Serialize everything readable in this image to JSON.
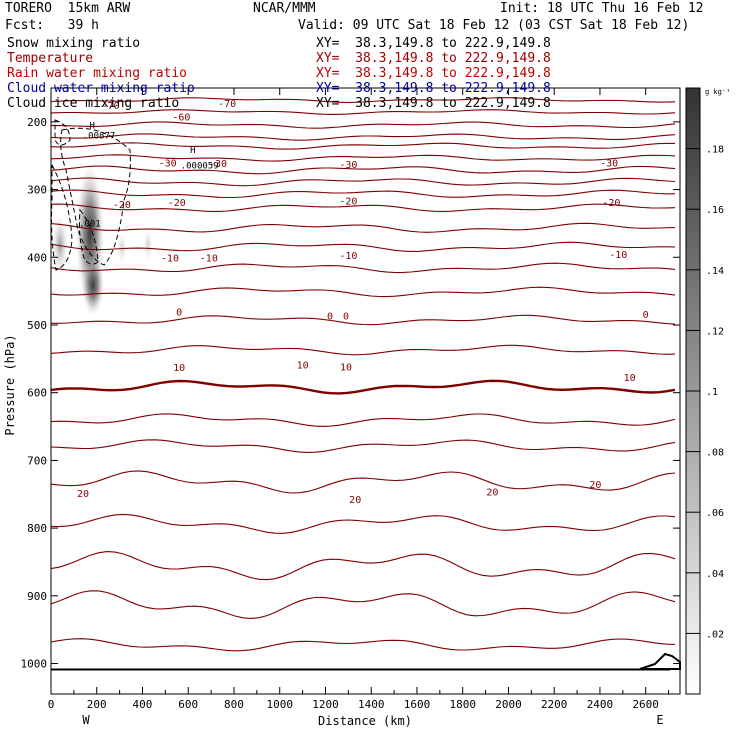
{
  "header": {
    "model": "TORERO  15km ARW",
    "center": "NCAR/MMM",
    "init": "Init: 18 UTC Thu 16 Feb 12",
    "fcst": "Fcst:   39 h",
    "valid": "Valid: 09 UTC Sat 18 Feb 12 (03 CST Sat 18 Feb 12)"
  },
  "fields": [
    {
      "name": "Snow mixing ratio",
      "xy": "XY=  38.3,149.8 to 222.9,149.8",
      "color": "#000000"
    },
    {
      "name": "Temperature",
      "xy": "XY=  38.3,149.8 to 222.9,149.8",
      "color": "#a00000"
    },
    {
      "name": "Rain water mixing ratio",
      "xy": "XY=  38.3,149.8 to 222.9,149.8",
      "color": "#c00000"
    },
    {
      "name": "Cloud water mixing ratio",
      "xy": "XY=  38.3,149.8 to 222.9,149.8",
      "color": "#0000a0"
    },
    {
      "name": "Cloud ice mixing ratio",
      "xy": "XY=  38.3,149.8 to 222.9,149.8",
      "color": "#000000"
    }
  ],
  "chart_data": {
    "type": "contour",
    "xlabel": "Distance (km)",
    "ylabel": "Pressure (hPa)",
    "xlim": [
      0,
      2750
    ],
    "ylim": [
      1045,
      150
    ],
    "xticks": [
      "0",
      "200",
      "400",
      "600",
      "800",
      "1000",
      "1200",
      "1400",
      "1600",
      "1800",
      "2000",
      "2200",
      "2400",
      "2600"
    ],
    "yticks": [
      "200",
      "300",
      "400",
      "500",
      "600",
      "700",
      "800",
      "900",
      "1000"
    ],
    "x_end_labels": {
      "left": "W",
      "right": "E"
    },
    "colorbar": {
      "unit": "g kg⁻¹",
      "ticks": [
        ".02",
        ".04",
        ".06",
        ".08",
        ".1",
        ".12",
        ".14",
        ".16",
        ".18"
      ],
      "range": [
        0,
        0.2
      ]
    },
    "contour_color": "#800000",
    "temperature_labels": [
      {
        "t": "-70",
        "x": 770,
        "p": 172
      },
      {
        "t": "-70",
        "x": 260,
        "p": 175
      },
      {
        "t": "-60",
        "x": 570,
        "p": 192
      },
      {
        "t": "-30",
        "x": 510,
        "p": 260
      },
      {
        "t": "-30",
        "x": 730,
        "p": 261
      },
      {
        "t": "-30",
        "x": 1300,
        "p": 262
      },
      {
        "t": "-30",
        "x": 2440,
        "p": 260
      },
      {
        "t": "-20",
        "x": 310,
        "p": 321
      },
      {
        "t": "-20",
        "x": 550,
        "p": 318
      },
      {
        "t": "-20",
        "x": 1300,
        "p": 316
      },
      {
        "t": "-20",
        "x": 2450,
        "p": 318
      },
      {
        "t": "-10",
        "x": 520,
        "p": 400
      },
      {
        "t": "-10",
        "x": 690,
        "p": 400
      },
      {
        "t": "-10",
        "x": 1300,
        "p": 397
      },
      {
        "t": "-10",
        "x": 2480,
        "p": 395
      },
      {
        "t": "0",
        "x": 560,
        "p": 480
      },
      {
        "t": "0",
        "x": 1220,
        "p": 486
      },
      {
        "t": "0",
        "x": 1290,
        "p": 486
      },
      {
        "t": "0",
        "x": 2600,
        "p": 484
      },
      {
        "t": "10",
        "x": 560,
        "p": 562
      },
      {
        "t": "10",
        "x": 1100,
        "p": 558
      },
      {
        "t": "10",
        "x": 1290,
        "p": 561
      },
      {
        "t": "10",
        "x": 2530,
        "p": 577
      },
      {
        "t": "20",
        "x": 140,
        "p": 748
      },
      {
        "t": "20",
        "x": 1330,
        "p": 757
      },
      {
        "t": "20",
        "x": 1930,
        "p": 746
      },
      {
        "t": "20",
        "x": 2380,
        "p": 735
      }
    ],
    "annotations": [
      {
        "text": "H",
        "x": 180,
        "p": 204
      },
      {
        "text": ".00877",
        "x": 210,
        "p": 219
      },
      {
        "text": "H",
        "x": 620,
        "p": 240
      },
      {
        "text": ".000059",
        "x": 650,
        "p": 263
      },
      {
        "text": ".001",
        "x": 170,
        "p": 349
      }
    ]
  }
}
